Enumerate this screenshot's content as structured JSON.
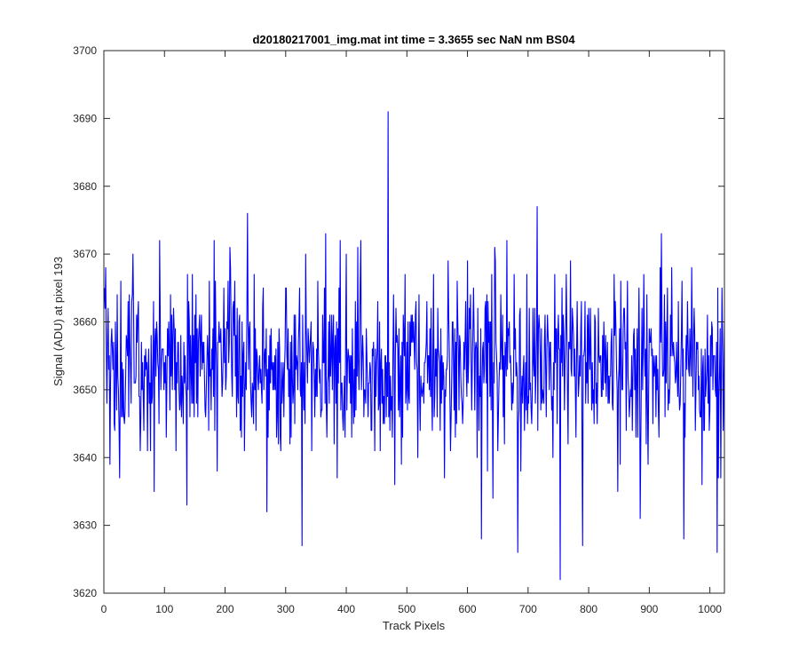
{
  "chart_data": {
    "type": "line",
    "title": "d20180217001_img.mat int time = 3.3655 sec  NaN nm BS04",
    "xlabel": "Track Pixels",
    "ylabel": "Signal (ADU) at pixel 193",
    "xlim": [
      0,
      1024
    ],
    "ylim": [
      3620,
      3700
    ],
    "xticks": [
      0,
      100,
      200,
      300,
      400,
      500,
      600,
      700,
      800,
      900,
      1000
    ],
    "yticks": [
      3620,
      3630,
      3640,
      3650,
      3660,
      3670,
      3680,
      3690,
      3700
    ],
    "grid": false,
    "legend": "none",
    "series_color": "#0000ff",
    "noise": {
      "seed": 20180217,
      "count": 1024,
      "x_start": 1,
      "x_step": 1,
      "mean": 3653.5,
      "sd": 6.2
    },
    "anchor_points": [
      {
        "x": 3,
        "y": 3668
      },
      {
        "x": 10,
        "y": 3639
      },
      {
        "x": 26,
        "y": 3637
      },
      {
        "x": 48,
        "y": 3670
      },
      {
        "x": 83,
        "y": 3635
      },
      {
        "x": 110,
        "y": 3664
      },
      {
        "x": 137,
        "y": 3633
      },
      {
        "x": 146,
        "y": 3667
      },
      {
        "x": 208,
        "y": 3671
      },
      {
        "x": 237,
        "y": 3676
      },
      {
        "x": 269,
        "y": 3632
      },
      {
        "x": 300,
        "y": 3665
      },
      {
        "x": 327,
        "y": 3627
      },
      {
        "x": 366,
        "y": 3673
      },
      {
        "x": 385,
        "y": 3637
      },
      {
        "x": 419,
        "y": 3671
      },
      {
        "x": 469,
        "y": 3691
      },
      {
        "x": 480,
        "y": 3636
      },
      {
        "x": 515,
        "y": 3663
      },
      {
        "x": 562,
        "y": 3637
      },
      {
        "x": 600,
        "y": 3669
      },
      {
        "x": 623,
        "y": 3628
      },
      {
        "x": 646,
        "y": 3669
      },
      {
        "x": 665,
        "y": 3672
      },
      {
        "x": 683,
        "y": 3626
      },
      {
        "x": 715,
        "y": 3677
      },
      {
        "x": 753,
        "y": 3622
      },
      {
        "x": 770,
        "y": 3669
      },
      {
        "x": 790,
        "y": 3627
      },
      {
        "x": 842,
        "y": 3667
      },
      {
        "x": 885,
        "y": 3631
      },
      {
        "x": 920,
        "y": 3673
      },
      {
        "x": 948,
        "y": 3663
      },
      {
        "x": 957,
        "y": 3628
      },
      {
        "x": 975,
        "y": 3658
      },
      {
        "x": 987,
        "y": 3636
      },
      {
        "x": 1012,
        "y": 3626
      },
      {
        "x": 1020,
        "y": 3665
      }
    ]
  }
}
